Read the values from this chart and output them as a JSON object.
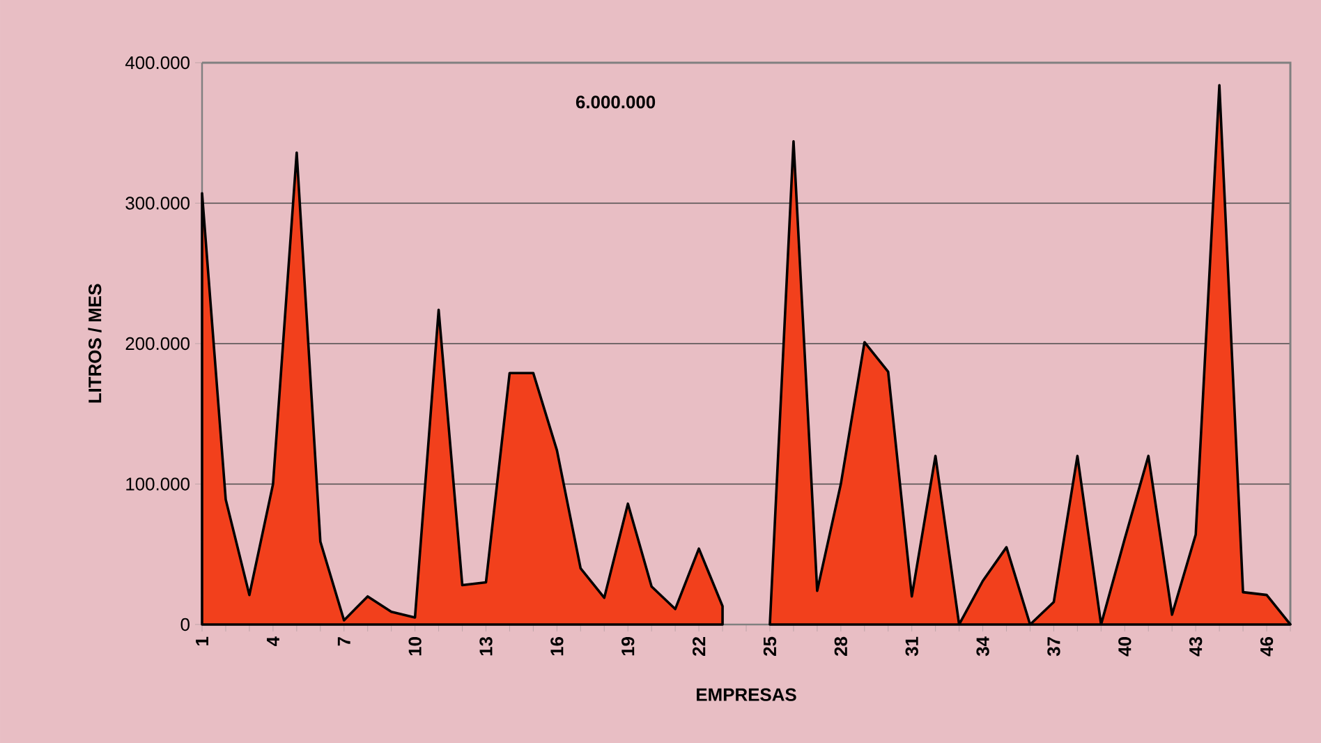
{
  "chart_data": {
    "type": "area",
    "xlabel": "EMPRESAS",
    "ylabel": "LITROS / MES",
    "annotations": [
      "6.000.000"
    ],
    "categories": [
      "1",
      null,
      null,
      "4",
      null,
      null,
      "7",
      null,
      null,
      "10",
      null,
      null,
      "13",
      null,
      null,
      "16",
      null,
      null,
      "19",
      null,
      null,
      "22",
      null,
      null,
      "25",
      null,
      null,
      "28",
      null,
      null,
      "31",
      null,
      null,
      "34",
      null,
      null,
      "37",
      null,
      null,
      "40",
      null,
      null,
      "43",
      null,
      null,
      "46",
      null
    ],
    "series": [
      {
        "color": "#f2401c",
        "values": [
          307000,
          89000,
          21000,
          100000,
          336000,
          59000,
          3000,
          20000,
          9000,
          5000,
          224000,
          28000,
          30000,
          179000,
          179000,
          124000,
          40000,
          19000,
          86000,
          27000,
          11000,
          54000,
          13000,
          null,
          0,
          344000,
          24000,
          100000,
          201000,
          180000,
          20000,
          120000,
          0,
          31000,
          55000,
          0,
          16000,
          120000,
          0,
          61000,
          120000,
          7000,
          64000,
          384000,
          23000,
          21000,
          0
        ]
      }
    ],
    "ylim": [
      0,
      400000
    ],
    "yticks": [
      0,
      {
        "value": 100000,
        "label": "100.000"
      },
      {
        "value": 200000,
        "label": "200.000"
      },
      {
        "value": 300000,
        "label": "300.000"
      },
      {
        "value": 400000,
        "label": "400.000"
      }
    ],
    "grid": "y"
  }
}
